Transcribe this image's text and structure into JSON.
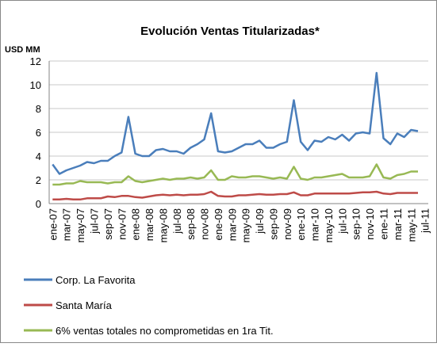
{
  "chart_data": {
    "type": "line",
    "title": "Evolución Ventas Titularizadas*",
    "y_label": "USD MM",
    "categories": [
      "ene-07",
      null,
      "mar-07",
      null,
      "may-07",
      null,
      "jul-07",
      null,
      "sep-07",
      null,
      "nov-07",
      null,
      "ene-08",
      null,
      "mar-08",
      null,
      "may-08",
      null,
      "jul-08",
      null,
      "sep-08",
      null,
      "nov-08",
      null,
      "ene-09",
      null,
      "mar-09",
      null,
      "may-09",
      null,
      "jul-09",
      null,
      "sep-09",
      null,
      "nov-09",
      null,
      "ene-10",
      null,
      "mar-10",
      null,
      "may-10",
      null,
      "jul-10",
      null,
      "sep-10",
      null,
      "nov-10",
      null,
      "ene-11",
      null,
      "mar-11",
      null,
      "may-11",
      null,
      "jul-11"
    ],
    "series": [
      {
        "name": "Corp. La Favorita",
        "color": "#4a7ebb",
        "values": [
          3.3,
          2.5,
          2.8,
          3.0,
          3.2,
          3.5,
          3.4,
          3.6,
          3.6,
          4.0,
          4.3,
          7.3,
          4.2,
          4.0,
          4.0,
          4.5,
          4.6,
          4.4,
          4.4,
          4.2,
          4.7,
          5.0,
          5.4,
          7.6,
          4.4,
          4.3,
          4.4,
          4.7,
          5.0,
          5.0,
          5.3,
          4.7,
          4.7,
          5.0,
          5.2,
          8.7,
          5.2,
          4.5,
          5.3,
          5.2,
          5.6,
          5.4,
          5.8,
          5.3,
          5.9,
          6.0,
          5.9,
          11.0,
          5.5,
          5.0,
          5.9,
          5.6,
          6.2,
          6.1,
          null
        ]
      },
      {
        "name": "Santa María",
        "color": "#be4b48",
        "values": [
          0.35,
          0.35,
          0.4,
          0.35,
          0.35,
          0.45,
          0.45,
          0.45,
          0.6,
          0.55,
          0.65,
          0.65,
          0.55,
          0.5,
          0.6,
          0.7,
          0.75,
          0.7,
          0.75,
          0.7,
          0.75,
          0.75,
          0.8,
          1.0,
          0.65,
          0.6,
          0.6,
          0.7,
          0.7,
          0.75,
          0.8,
          0.75,
          0.75,
          0.8,
          0.8,
          0.95,
          0.7,
          0.7,
          0.85,
          0.85,
          0.85,
          0.85,
          0.85,
          0.85,
          0.9,
          0.95,
          0.95,
          1.0,
          0.85,
          0.8,
          0.9,
          0.9,
          0.9,
          0.9,
          null
        ]
      },
      {
        "name": "6% ventas totales no comprometidas en 1ra Tit.",
        "color": "#98b954",
        "values": [
          1.6,
          1.6,
          1.7,
          1.7,
          1.9,
          1.8,
          1.8,
          1.8,
          1.7,
          1.8,
          1.8,
          2.3,
          1.9,
          1.8,
          1.9,
          2.0,
          2.1,
          2.0,
          2.1,
          2.1,
          2.2,
          2.1,
          2.2,
          2.8,
          2.0,
          2.0,
          2.3,
          2.2,
          2.2,
          2.3,
          2.3,
          2.2,
          2.1,
          2.2,
          2.1,
          3.1,
          2.1,
          2.0,
          2.2,
          2.2,
          2.3,
          2.4,
          2.5,
          2.2,
          2.2,
          2.2,
          2.3,
          3.3,
          2.2,
          2.1,
          2.4,
          2.5,
          2.7,
          2.7,
          null
        ]
      }
    ],
    "ylim": [
      0,
      12
    ],
    "yticks": [
      0,
      2,
      4,
      6,
      8,
      10,
      12
    ],
    "grid": true
  }
}
